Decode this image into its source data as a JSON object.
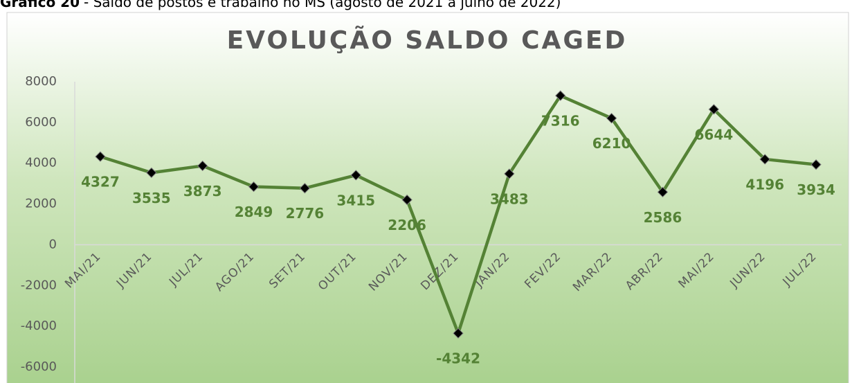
{
  "caption_label": "Gráfico 20",
  "caption": "- Saldo de postos e trabalho no MS (agosto de 2021 a julho de 2022)",
  "chart_data": {
    "type": "line",
    "title": "EVOLUÇÃO SALDO CAGED",
    "categories": [
      "MAI/21",
      "JUN/21",
      "JUL/21",
      "AGO/21",
      "SET/21",
      "OUT/21",
      "NOV/21",
      "DEZ/21",
      "JAN/22",
      "FEV/22",
      "MAR/22",
      "ABR/22",
      "MAI/22",
      "JUN/22",
      "JUL/22"
    ],
    "values": [
      4327,
      3535,
      3873,
      2849,
      2776,
      3415,
      2206,
      -4342,
      3483,
      7316,
      6210,
      2586,
      6644,
      4196,
      3934
    ],
    "color": "#548235",
    "marker_color": "#000000",
    "ylim": [
      -6000,
      8000
    ],
    "yticks": [
      -6000,
      -4000,
      -2000,
      0,
      2000,
      4000,
      6000,
      8000
    ],
    "grid": false
  }
}
